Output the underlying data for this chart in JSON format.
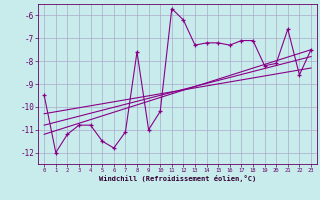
{
  "xlabel": "Windchill (Refroidissement éolien,°C)",
  "bg_color": "#c8ecec",
  "grid_color": "#aaaacc",
  "line_color": "#880088",
  "xlim": [
    -0.5,
    23.5
  ],
  "ylim": [
    -12.5,
    -5.5
  ],
  "yticks": [
    -12,
    -11,
    -10,
    -9,
    -8,
    -7,
    -6
  ],
  "xticks": [
    0,
    1,
    2,
    3,
    4,
    5,
    6,
    7,
    8,
    9,
    10,
    11,
    12,
    13,
    14,
    15,
    16,
    17,
    18,
    19,
    20,
    21,
    22,
    23
  ],
  "series1_x": [
    0,
    1,
    2,
    3,
    4,
    5,
    6,
    7,
    8,
    9,
    10,
    11,
    12,
    13,
    14,
    15,
    16,
    17,
    18,
    19,
    20,
    21,
    22,
    23
  ],
  "series1_y": [
    -9.5,
    -12.0,
    -11.2,
    -10.8,
    -10.8,
    -11.5,
    -11.8,
    -11.1,
    -7.6,
    -11.0,
    -10.2,
    -5.7,
    -6.2,
    -7.3,
    -7.2,
    -7.2,
    -7.3,
    -7.1,
    -7.1,
    -8.2,
    -8.1,
    -6.6,
    -8.6,
    -7.5
  ],
  "series2_x": [
    0,
    23
  ],
  "series2_y": [
    -11.2,
    -7.5
  ],
  "series3_x": [
    0,
    23
  ],
  "series3_y": [
    -10.8,
    -7.8
  ],
  "series4_x": [
    0,
    23
  ],
  "series4_y": [
    -10.3,
    -8.3
  ]
}
